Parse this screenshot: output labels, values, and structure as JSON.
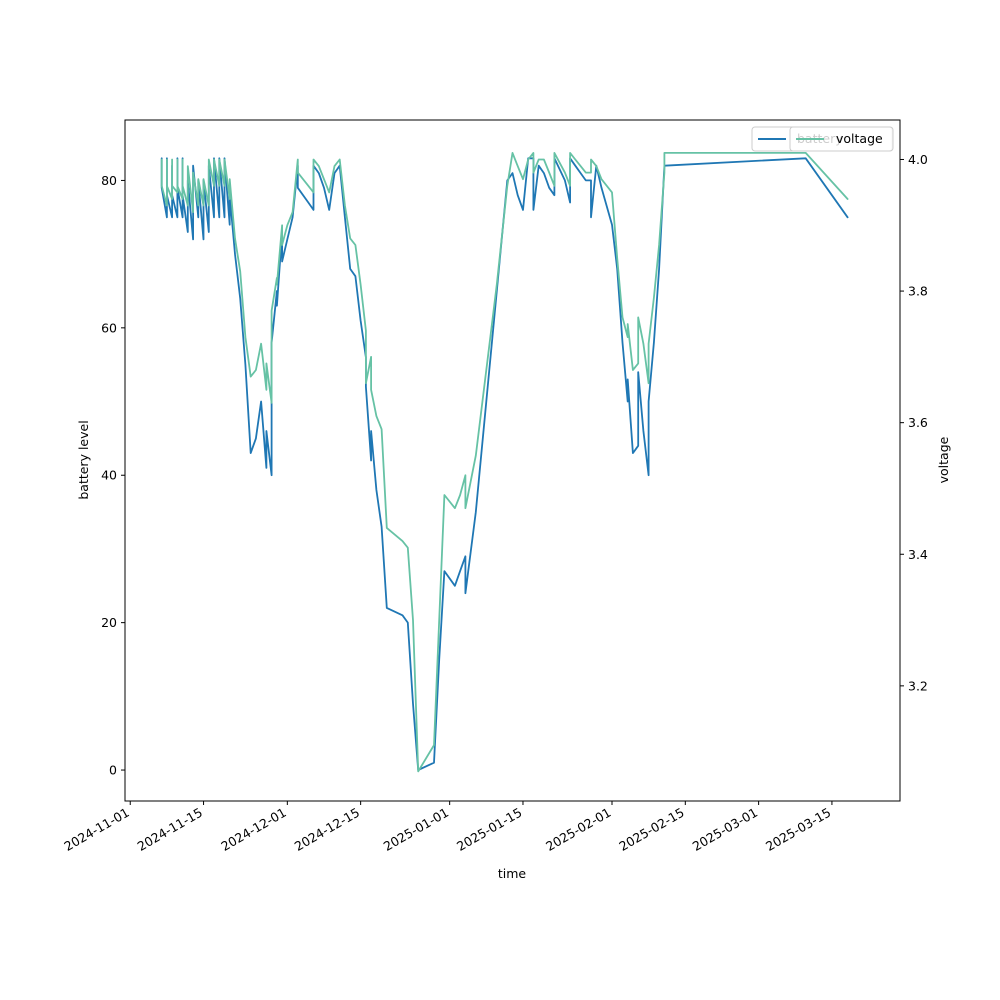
{
  "chart_data": {
    "type": "line",
    "xlabel": "time",
    "ylabel_left": "battery level",
    "ylabel_right": "voltage",
    "x_tick_labels": [
      "2024-11-01",
      "2024-11-15",
      "2024-12-01",
      "2024-12-15",
      "2025-01-01",
      "2025-01-15",
      "2025-02-01",
      "2025-02-15",
      "2025-03-01",
      "2025-03-15"
    ],
    "y_left_ticks": [
      0,
      20,
      40,
      60,
      80
    ],
    "y_right_ticks": [
      3.2,
      3.4,
      3.6,
      3.8,
      4.0
    ],
    "ylim_left": [
      -4.2,
      88.2
    ],
    "ylim_right": [
      3.025,
      4.06
    ],
    "xlim": [
      "2024-10-31",
      "2025-03-28"
    ],
    "legend_placement": "top-right",
    "colors": {
      "battery": "#1f77b4",
      "voltage": "#66c2a5"
    },
    "series": [
      {
        "name": "battery",
        "axis": "left",
        "points": [
          [
            "2024-11-07",
            83
          ],
          [
            "2024-11-07",
            79
          ],
          [
            "2024-11-08",
            75
          ],
          [
            "2024-11-08",
            83
          ],
          [
            "2024-11-08",
            78
          ],
          [
            "2024-11-09",
            75
          ],
          [
            "2024-11-09",
            82
          ],
          [
            "2024-11-09",
            78
          ],
          [
            "2024-11-10",
            75
          ],
          [
            "2024-11-10",
            83
          ],
          [
            "2024-11-10",
            79
          ],
          [
            "2024-11-11",
            75
          ],
          [
            "2024-11-11",
            83
          ],
          [
            "2024-11-11",
            78
          ],
          [
            "2024-11-12",
            73
          ],
          [
            "2024-11-12",
            80
          ],
          [
            "2024-11-13",
            72
          ],
          [
            "2024-11-13",
            82
          ],
          [
            "2024-11-14",
            75
          ],
          [
            "2024-11-14",
            80
          ],
          [
            "2024-11-15",
            72
          ],
          [
            "2024-11-15",
            80
          ],
          [
            "2024-11-16",
            73
          ],
          [
            "2024-11-16",
            82
          ],
          [
            "2024-11-17",
            75
          ],
          [
            "2024-11-17",
            83
          ],
          [
            "2024-11-18",
            75
          ],
          [
            "2024-11-18",
            83
          ],
          [
            "2024-11-19",
            75
          ],
          [
            "2024-11-19",
            83
          ],
          [
            "2024-11-20",
            74
          ],
          [
            "2024-11-20",
            78
          ],
          [
            "2024-11-21",
            70
          ],
          [
            "2024-11-22",
            64
          ],
          [
            "2024-11-23",
            55
          ],
          [
            "2024-11-24",
            43
          ],
          [
            "2024-11-25",
            45
          ],
          [
            "2024-11-26",
            50
          ],
          [
            "2024-11-27",
            41
          ],
          [
            "2024-11-27",
            46
          ],
          [
            "2024-11-28",
            40
          ],
          [
            "2024-11-28",
            58
          ],
          [
            "2024-11-29",
            65
          ],
          [
            "2024-11-29",
            63
          ],
          [
            "2024-11-30",
            73
          ],
          [
            "2024-11-30",
            69
          ],
          [
            "2024-12-01",
            72
          ],
          [
            "2024-12-02",
            75
          ],
          [
            "2024-12-03",
            82
          ],
          [
            "2024-12-03",
            79
          ],
          [
            "2024-12-05",
            77
          ],
          [
            "2024-12-06",
            76
          ],
          [
            "2024-12-06",
            82
          ],
          [
            "2024-12-07",
            81
          ],
          [
            "2024-12-08",
            79
          ],
          [
            "2024-12-09",
            76
          ],
          [
            "2024-12-10",
            81
          ],
          [
            "2024-12-11",
            82
          ],
          [
            "2024-12-12",
            75
          ],
          [
            "2024-12-13",
            68
          ],
          [
            "2024-12-14",
            67
          ],
          [
            "2024-12-15",
            61
          ],
          [
            "2024-12-16",
            56
          ],
          [
            "2024-12-16",
            52
          ],
          [
            "2024-12-17",
            42
          ],
          [
            "2024-12-17",
            46
          ],
          [
            "2024-12-18",
            38
          ],
          [
            "2024-12-19",
            33
          ],
          [
            "2024-12-20",
            22
          ],
          [
            "2024-12-23",
            21
          ],
          [
            "2024-12-24",
            20
          ],
          [
            "2024-12-25",
            9
          ],
          [
            "2024-12-26",
            0
          ],
          [
            "2024-12-29",
            1
          ],
          [
            "2024-12-30",
            15
          ],
          [
            "2024-12-31",
            27
          ],
          [
            "2025-01-02",
            25
          ],
          [
            "2025-01-03",
            27
          ],
          [
            "2025-01-04",
            29
          ],
          [
            "2025-01-04",
            24
          ],
          [
            "2025-01-06",
            35
          ],
          [
            "2025-01-08",
            50
          ],
          [
            "2025-01-10",
            65
          ],
          [
            "2025-01-12",
            80
          ],
          [
            "2025-01-13",
            81
          ],
          [
            "2025-01-14",
            78
          ],
          [
            "2025-01-15",
            76
          ],
          [
            "2025-01-16",
            83
          ],
          [
            "2025-01-17",
            83
          ],
          [
            "2025-01-17",
            76
          ],
          [
            "2025-01-18",
            82
          ],
          [
            "2025-01-19",
            81
          ],
          [
            "2025-01-20",
            79
          ],
          [
            "2025-01-21",
            78
          ],
          [
            "2025-01-21",
            83
          ],
          [
            "2025-01-23",
            80
          ],
          [
            "2025-01-24",
            77
          ],
          [
            "2025-01-24",
            83
          ],
          [
            "2025-01-25",
            82
          ],
          [
            "2025-01-26",
            81
          ],
          [
            "2025-01-27",
            80
          ],
          [
            "2025-01-28",
            80
          ],
          [
            "2025-01-28",
            75
          ],
          [
            "2025-01-29",
            82
          ],
          [
            "2025-01-30",
            79
          ],
          [
            "2025-02-01",
            74
          ],
          [
            "2025-02-02",
            68
          ],
          [
            "2025-02-03",
            58
          ],
          [
            "2025-02-04",
            50
          ],
          [
            "2025-02-04",
            53
          ],
          [
            "2025-02-05",
            43
          ],
          [
            "2025-02-06",
            44
          ],
          [
            "2025-02-06",
            54
          ],
          [
            "2025-02-07",
            46
          ],
          [
            "2025-02-08",
            40
          ],
          [
            "2025-02-08",
            50
          ],
          [
            "2025-02-09",
            58
          ],
          [
            "2025-02-10",
            68
          ],
          [
            "2025-02-11",
            82
          ],
          [
            "2025-03-10",
            83
          ],
          [
            "2025-03-18",
            75
          ]
        ]
      },
      {
        "name": "voltage",
        "axis": "right",
        "points": [
          [
            "2024-11-07",
            4.0
          ],
          [
            "2024-11-07",
            3.96
          ],
          [
            "2024-11-08",
            3.93
          ],
          [
            "2024-11-08",
            4.0
          ],
          [
            "2024-11-08",
            3.96
          ],
          [
            "2024-11-09",
            3.94
          ],
          [
            "2024-11-09",
            4.0
          ],
          [
            "2024-11-09",
            3.96
          ],
          [
            "2024-11-10",
            3.95
          ],
          [
            "2024-11-10",
            4.0
          ],
          [
            "2024-11-10",
            3.96
          ],
          [
            "2024-11-11",
            3.94
          ],
          [
            "2024-11-11",
            4.0
          ],
          [
            "2024-11-11",
            3.96
          ],
          [
            "2024-11-12",
            3.93
          ],
          [
            "2024-11-12",
            3.99
          ],
          [
            "2024-11-13",
            3.92
          ],
          [
            "2024-11-13",
            3.98
          ],
          [
            "2024-11-14",
            3.93
          ],
          [
            "2024-11-14",
            3.97
          ],
          [
            "2024-11-15",
            3.93
          ],
          [
            "2024-11-15",
            3.97
          ],
          [
            "2024-11-16",
            3.93
          ],
          [
            "2024-11-16",
            4.0
          ],
          [
            "2024-11-17",
            3.96
          ],
          [
            "2024-11-17",
            4.0
          ],
          [
            "2024-11-18",
            3.96
          ],
          [
            "2024-11-18",
            4.0
          ],
          [
            "2024-11-19",
            3.96
          ],
          [
            "2024-11-19",
            4.0
          ],
          [
            "2024-11-20",
            3.94
          ],
          [
            "2024-11-20",
            3.97
          ],
          [
            "2024-11-21",
            3.88
          ],
          [
            "2024-11-22",
            3.83
          ],
          [
            "2024-11-23",
            3.73
          ],
          [
            "2024-11-24",
            3.67
          ],
          [
            "2024-11-25",
            3.68
          ],
          [
            "2024-11-26",
            3.72
          ],
          [
            "2024-11-27",
            3.65
          ],
          [
            "2024-11-27",
            3.69
          ],
          [
            "2024-11-28",
            3.63
          ],
          [
            "2024-11-28",
            3.77
          ],
          [
            "2024-11-29",
            3.82
          ],
          [
            "2024-11-29",
            3.81
          ],
          [
            "2024-11-30",
            3.9
          ],
          [
            "2024-11-30",
            3.87
          ],
          [
            "2024-12-01",
            3.9
          ],
          [
            "2024-12-02",
            3.92
          ],
          [
            "2024-12-03",
            4.0
          ],
          [
            "2024-12-03",
            3.98
          ],
          [
            "2024-12-05",
            3.96
          ],
          [
            "2024-12-06",
            3.95
          ],
          [
            "2024-12-06",
            4.0
          ],
          [
            "2024-12-07",
            3.99
          ],
          [
            "2024-12-08",
            3.97
          ],
          [
            "2024-12-09",
            3.95
          ],
          [
            "2024-12-10",
            3.99
          ],
          [
            "2024-12-11",
            4.0
          ],
          [
            "2024-12-12",
            3.93
          ],
          [
            "2024-12-13",
            3.88
          ],
          [
            "2024-12-14",
            3.87
          ],
          [
            "2024-12-15",
            3.81
          ],
          [
            "2024-12-16",
            3.74
          ],
          [
            "2024-12-16",
            3.66
          ],
          [
            "2024-12-17",
            3.7
          ],
          [
            "2024-12-17",
            3.65
          ],
          [
            "2024-12-18",
            3.61
          ],
          [
            "2024-12-19",
            3.59
          ],
          [
            "2024-12-20",
            3.44
          ],
          [
            "2024-12-23",
            3.42
          ],
          [
            "2024-12-24",
            3.41
          ],
          [
            "2024-12-25",
            3.3
          ],
          [
            "2024-12-26",
            3.07
          ],
          [
            "2024-12-29",
            3.11
          ],
          [
            "2024-12-30",
            3.3
          ],
          [
            "2024-12-31",
            3.49
          ],
          [
            "2025-01-02",
            3.47
          ],
          [
            "2025-01-03",
            3.49
          ],
          [
            "2025-01-04",
            3.52
          ],
          [
            "2025-01-04",
            3.47
          ],
          [
            "2025-01-06",
            3.55
          ],
          [
            "2025-01-08",
            3.68
          ],
          [
            "2025-01-10",
            3.81
          ],
          [
            "2025-01-12",
            3.96
          ],
          [
            "2025-01-13",
            4.01
          ],
          [
            "2025-01-14",
            3.99
          ],
          [
            "2025-01-15",
            3.97
          ],
          [
            "2025-01-16",
            4.0
          ],
          [
            "2025-01-17",
            4.01
          ],
          [
            "2025-01-17",
            3.98
          ],
          [
            "2025-01-18",
            4.0
          ],
          [
            "2025-01-19",
            4.0
          ],
          [
            "2025-01-20",
            3.98
          ],
          [
            "2025-01-21",
            3.96
          ],
          [
            "2025-01-21",
            4.01
          ],
          [
            "2025-01-23",
            3.98
          ],
          [
            "2025-01-24",
            3.96
          ],
          [
            "2025-01-24",
            4.01
          ],
          [
            "2025-01-25",
            4.0
          ],
          [
            "2025-01-26",
            3.99
          ],
          [
            "2025-01-27",
            3.98
          ],
          [
            "2025-01-28",
            3.98
          ],
          [
            "2025-01-28",
            4.0
          ],
          [
            "2025-01-29",
            3.99
          ],
          [
            "2025-01-30",
            3.97
          ],
          [
            "2025-02-01",
            3.95
          ],
          [
            "2025-02-02",
            3.85
          ],
          [
            "2025-02-03",
            3.76
          ],
          [
            "2025-02-04",
            3.73
          ],
          [
            "2025-02-04",
            3.75
          ],
          [
            "2025-02-05",
            3.68
          ],
          [
            "2025-02-06",
            3.69
          ],
          [
            "2025-02-06",
            3.76
          ],
          [
            "2025-02-07",
            3.72
          ],
          [
            "2025-02-08",
            3.66
          ],
          [
            "2025-02-08",
            3.72
          ],
          [
            "2025-02-09",
            3.79
          ],
          [
            "2025-02-10",
            3.87
          ],
          [
            "2025-02-11",
            3.98
          ],
          [
            "2025-02-11",
            4.01
          ],
          [
            "2025-03-10",
            4.01
          ],
          [
            "2025-03-18",
            3.94
          ]
        ]
      }
    ]
  }
}
